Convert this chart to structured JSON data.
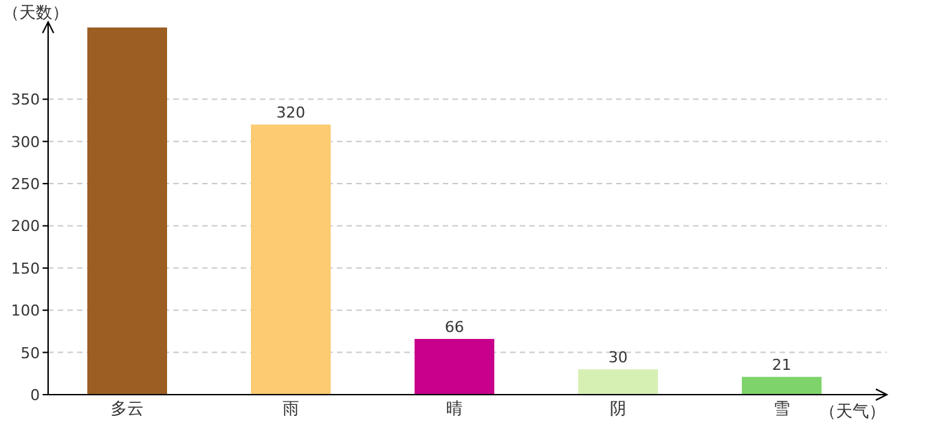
{
  "chart_data": {
    "type": "bar",
    "xlabel": "（天气）",
    "ylabel": "（天数）",
    "categories": [
      "多云",
      "雨",
      "晴",
      "阴",
      "雪"
    ],
    "values": [
      435,
      320,
      66,
      30,
      21
    ],
    "value_labels": [
      null,
      "320",
      "66",
      "30",
      "21"
    ],
    "colors": [
      "#9c5e22",
      "#fccb72",
      "#c8008c",
      "#d6f0b4",
      "#7ed46a"
    ],
    "ylim": [
      0,
      435
    ],
    "yticks": [
      0,
      50,
      100,
      150,
      200,
      250,
      300,
      350
    ],
    "grid": "y"
  }
}
